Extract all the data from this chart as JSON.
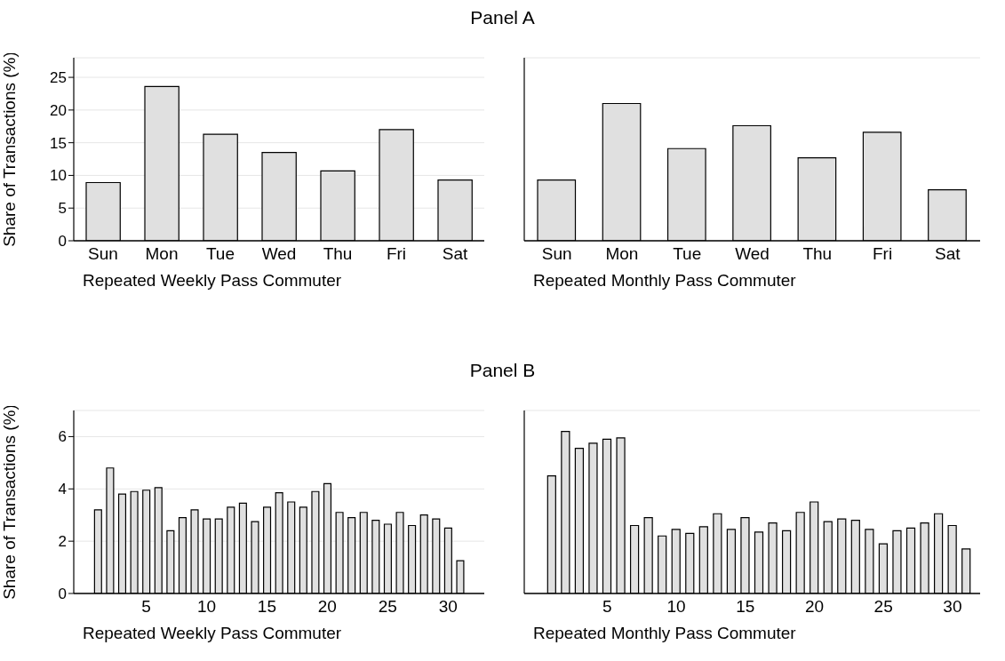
{
  "chart_data": [
    {
      "type": "bar",
      "title": "Panel A",
      "ylabel": "Share of Transactions (%)",
      "xlabel": "Repeated Weekly Pass Commuter",
      "categories": [
        "Sun",
        "Mon",
        "Tue",
        "Wed",
        "Thu",
        "Fri",
        "Sat"
      ],
      "values": [
        8.9,
        23.6,
        16.3,
        13.5,
        10.7,
        17.0,
        9.3
      ],
      "color": "#e0e0e0",
      "ylim": [
        0,
        28
      ],
      "yticks": [
        0,
        5,
        10,
        15,
        20,
        25
      ],
      "grid": "y"
    },
    {
      "type": "bar",
      "xlabel": "Repeated Monthly Pass Commuter",
      "categories": [
        "Sun",
        "Mon",
        "Tue",
        "Wed",
        "Thu",
        "Fri",
        "Sat"
      ],
      "values": [
        9.3,
        21.0,
        14.1,
        17.6,
        12.7,
        16.6,
        7.8
      ],
      "color": "#e0e0e0",
      "ylim": [
        0,
        28
      ],
      "yticks": [
        0,
        5,
        10,
        15,
        20,
        25
      ],
      "grid": "y",
      "tick_labels": "x"
    },
    {
      "type": "bar",
      "title": "Panel B",
      "ylabel": "Share of Transactions (%)",
      "xlabel": "Repeated Weekly Pass Commuter",
      "x": [
        1,
        2,
        3,
        4,
        5,
        6,
        7,
        8,
        9,
        10,
        11,
        12,
        13,
        14,
        15,
        16,
        17,
        18,
        19,
        20,
        21,
        22,
        23,
        24,
        25,
        26,
        27,
        28,
        29,
        30,
        31
      ],
      "values": [
        3.2,
        4.8,
        3.8,
        3.9,
        3.95,
        4.05,
        2.4,
        2.9,
        3.2,
        2.85,
        2.85,
        3.3,
        3.45,
        2.75,
        3.3,
        3.85,
        3.5,
        3.3,
        3.9,
        4.2,
        3.1,
        2.9,
        3.1,
        2.8,
        2.65,
        3.1,
        2.6,
        3.0,
        2.85,
        2.5,
        1.25
      ],
      "color": "#e0e0e0",
      "xlim": [
        -1,
        33
      ],
      "xticks": [
        5,
        10,
        15,
        20,
        25,
        30
      ],
      "ylim": [
        0,
        7
      ],
      "yticks": [
        0,
        2,
        4,
        6
      ],
      "grid": "y"
    },
    {
      "type": "bar",
      "xlabel": "Repeated Monthly Pass Commuter",
      "x": [
        1,
        2,
        3,
        4,
        5,
        6,
        7,
        8,
        9,
        10,
        11,
        12,
        13,
        14,
        15,
        16,
        17,
        18,
        19,
        20,
        21,
        22,
        23,
        24,
        25,
        26,
        27,
        28,
        29,
        30,
        31
      ],
      "values": [
        4.5,
        6.2,
        5.55,
        5.75,
        5.9,
        5.95,
        2.6,
        2.9,
        2.2,
        2.45,
        2.3,
        2.55,
        3.05,
        2.45,
        2.9,
        2.35,
        2.7,
        2.4,
        3.1,
        3.5,
        2.75,
        2.85,
        2.8,
        2.45,
        1.9,
        2.4,
        2.5,
        2.7,
        3.05,
        2.6,
        1.7
      ],
      "color": "#e0e0e0",
      "xlim": [
        -1,
        32
      ],
      "xticks": [
        5,
        10,
        15,
        20,
        25,
        30
      ],
      "ylim": [
        0,
        7
      ],
      "yticks": [
        0,
        2,
        4,
        6
      ],
      "grid": "y",
      "tick_labels": "x"
    }
  ]
}
